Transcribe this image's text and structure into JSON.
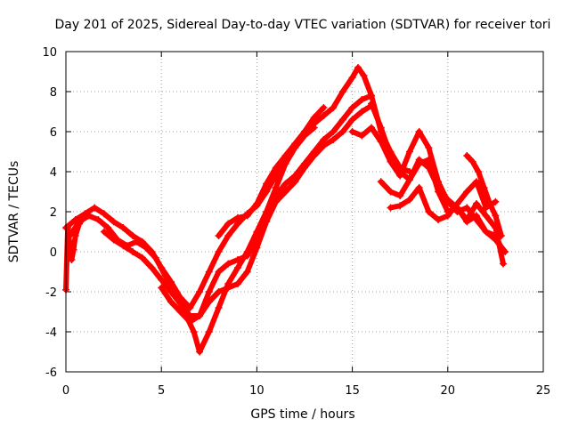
{
  "chart_data": {
    "type": "scatter",
    "title": "Day 201 of 2025, Sidereal Day-to-day VTEC variation (SDTVAR) for receiver tori",
    "xlabel": "GPS time / hours",
    "ylabel": "SDTVAR / TECUs",
    "xlim": [
      0,
      25
    ],
    "ylim": [
      -6,
      10
    ],
    "xticks": [
      "0",
      "5",
      "10",
      "15",
      "20",
      "25"
    ],
    "yticks": [
      "-6",
      "-4",
      "-2",
      "0",
      "2",
      "4",
      "6",
      "8",
      "10"
    ],
    "grid": true,
    "legend": "none",
    "marker": "plus",
    "color": "#ff0000",
    "series": [
      {
        "x": [
          0,
          0.5,
          1,
          1.5,
          2,
          2.5,
          3,
          3.5,
          4,
          4.5,
          5,
          5.5,
          6,
          6.5,
          7,
          7.5,
          8,
          8.5,
          9,
          9.5,
          10,
          10.5,
          11,
          11.5,
          12,
          12.5,
          13,
          13.5
        ],
        "y": [
          1.2,
          1.6,
          1.9,
          2.2,
          1.9,
          1.5,
          1.2,
          0.8,
          0.5,
          0.0,
          -0.8,
          -1.5,
          -2.3,
          -2.8,
          -2.0,
          -1.0,
          0.0,
          0.8,
          1.4,
          1.9,
          2.3,
          3.0,
          3.8,
          4.6,
          5.3,
          6.0,
          6.7,
          7.2
        ]
      },
      {
        "x": [
          0.2,
          0.7,
          1.2,
          1.7,
          2.2,
          2.7,
          3.2,
          3.7,
          4.2,
          4.7,
          5.2,
          5.7,
          6.2,
          6.7,
          7.0,
          7.5,
          8.0,
          8.5,
          9.0,
          9.5,
          10.0,
          10.5,
          11.0,
          11.5,
          12.0,
          12.5,
          13.0
        ],
        "y": [
          0.8,
          1.5,
          1.8,
          1.6,
          1.2,
          0.6,
          0.3,
          0.5,
          0.2,
          -0.3,
          -1.2,
          -2.0,
          -3.0,
          -4.0,
          -5.0,
          -4.0,
          -2.8,
          -1.6,
          -0.8,
          0.0,
          1.0,
          2.0,
          3.2,
          4.4,
          5.2,
          5.8,
          6.2
        ]
      },
      {
        "x": [
          2,
          2.5,
          3,
          3.5,
          4,
          4.5,
          5,
          5.5,
          6,
          6.5,
          7,
          7.5,
          8,
          8.5,
          9,
          9.5,
          10,
          10.5,
          11,
          11.5,
          12,
          12.5,
          13,
          13.5,
          14,
          14.5,
          15,
          15.5,
          16
        ],
        "y": [
          1.0,
          0.6,
          0.3,
          0.0,
          -0.3,
          -0.8,
          -1.4,
          -2.0,
          -2.6,
          -3.2,
          -3.2,
          -2.0,
          -1.0,
          -0.6,
          -0.4,
          -0.2,
          0.6,
          1.8,
          2.8,
          3.4,
          3.8,
          4.4,
          5.0,
          5.6,
          6.0,
          6.6,
          7.2,
          7.6,
          7.8
        ]
      },
      {
        "x": [
          5.0,
          5.5,
          6.0,
          6.5,
          7.0,
          7.5,
          8.0,
          8.5,
          9.0,
          9.5,
          10.0,
          10.5,
          11.0,
          11.5,
          12.0,
          12.5,
          13.0,
          13.5,
          14.0,
          14.5,
          15.0,
          15.5,
          16.0
        ],
        "y": [
          -1.8,
          -2.5,
          -3.0,
          -3.5,
          -3.2,
          -2.5,
          -2.0,
          -1.8,
          -1.6,
          -1.0,
          0.2,
          1.5,
          2.5,
          3.0,
          3.5,
          4.2,
          4.8,
          5.3,
          5.6,
          6.0,
          6.6,
          7.0,
          7.3
        ]
      },
      {
        "x": [
          8.0,
          8.5,
          9.0,
          9.5,
          10.0,
          10.5,
          11.0,
          11.5,
          12.0,
          12.5,
          13.0,
          13.5,
          14.0,
          14.5,
          15.0,
          15.3,
          15.6,
          16.0,
          16.5,
          17.0,
          17.5,
          18.0
        ],
        "y": [
          0.8,
          1.4,
          1.7,
          1.8,
          2.4,
          3.4,
          4.2,
          4.8,
          5.4,
          6.0,
          6.4,
          6.8,
          7.2,
          8.0,
          8.7,
          9.2,
          8.8,
          7.8,
          6.0,
          5.0,
          4.2,
          4.0
        ]
      },
      {
        "x": [
          15.0,
          15.5,
          16.0,
          16.5,
          17.0,
          17.5,
          18.0,
          18.5,
          19.0,
          19.5,
          20.0,
          20.5,
          21.0,
          21.5,
          22.0,
          22.5,
          23.0
        ],
        "y": [
          6.0,
          5.8,
          6.2,
          5.5,
          4.5,
          3.8,
          5.0,
          6.0,
          5.2,
          3.5,
          2.5,
          2.0,
          2.2,
          1.6,
          1.0,
          0.6,
          0.0
        ]
      },
      {
        "x": [
          16.0,
          16.5,
          17.0,
          17.5,
          18.0,
          18.5,
          19.0,
          19.5,
          20.0,
          20.5,
          21.0,
          21.5,
          22.0,
          22.5,
          22.8
        ],
        "y": [
          7.4,
          6.2,
          4.8,
          4.0,
          3.6,
          4.4,
          4.6,
          3.0,
          2.0,
          2.2,
          1.5,
          1.8,
          1.0,
          0.8,
          0.2
        ]
      },
      {
        "x": [
          16.5,
          17.0,
          17.5,
          18.0,
          18.5,
          19.0,
          19.5,
          20.0,
          20.5,
          21.0,
          21.5,
          22.0,
          22.5,
          22.9
        ],
        "y": [
          3.5,
          3.0,
          2.8,
          3.6,
          4.6,
          4.2,
          3.2,
          2.6,
          2.2,
          1.6,
          2.4,
          1.8,
          1.2,
          -0.6
        ]
      },
      {
        "x": [
          17.0,
          17.5,
          18.0,
          18.5,
          19.0,
          19.5,
          20.0,
          20.5,
          21.0,
          21.5,
          22.0,
          22.5
        ],
        "y": [
          2.2,
          2.3,
          2.6,
          3.2,
          2.0,
          1.6,
          1.8,
          2.4,
          3.0,
          3.5,
          2.2,
          2.5
        ]
      },
      {
        "x": [
          21.0,
          21.3,
          21.6,
          21.9,
          22.2,
          22.5,
          22.8
        ],
        "y": [
          4.8,
          4.5,
          4.0,
          3.2,
          2.4,
          1.8,
          0.8
        ]
      },
      {
        "x": [
          0.0,
          0.1,
          0.2,
          0.3,
          0.4,
          0.5,
          0.7,
          1.0
        ],
        "y": [
          -1.9,
          1.2,
          0.4,
          -0.4,
          0.1,
          0.8,
          1.4,
          1.8
        ]
      }
    ]
  }
}
